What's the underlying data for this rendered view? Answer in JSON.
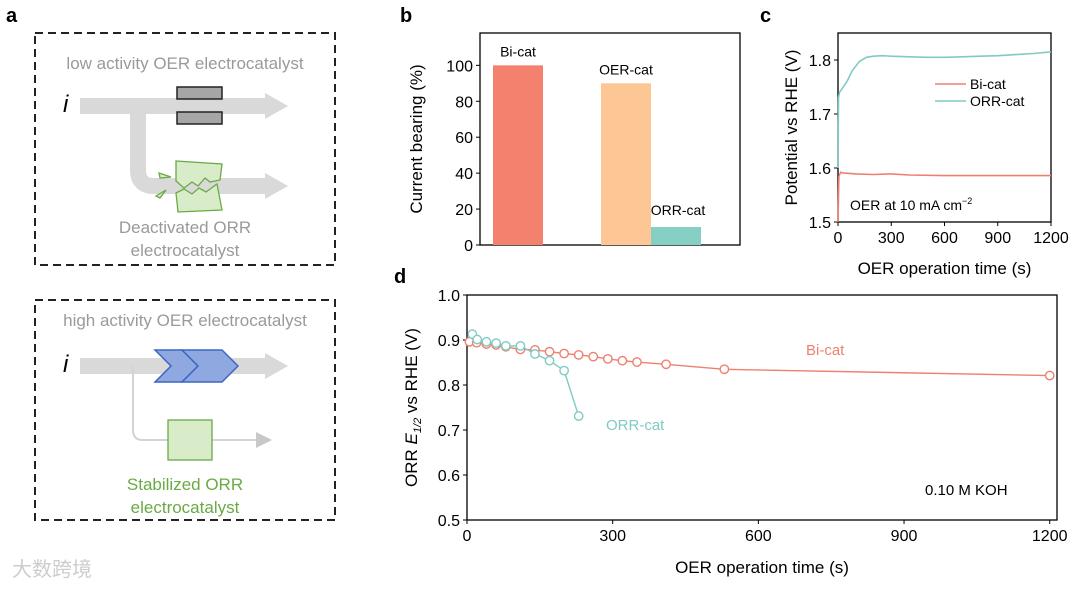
{
  "panels": {
    "a": "a",
    "b": "b",
    "c": "c",
    "d": "d"
  },
  "schematic": {
    "top_title": "low activity OER electrocatalyst",
    "top_current": "i",
    "top_caption_1": "Deactivated ORR",
    "top_caption_2": "electrocatalyst",
    "bottom_title": "high activity OER electrocatalyst",
    "bottom_current": "i",
    "bottom_caption_1": "Stabilized ORR",
    "bottom_caption_2": "electrocatalyst"
  },
  "watermark": "大数跨境",
  "colors": {
    "bi": "#f4806e",
    "oer": "#fcc795",
    "orr": "#85cfc5",
    "orr_line": "#7fcbc2",
    "bi_line": "#ef8070"
  },
  "chart_data": [
    {
      "id": "b",
      "type": "bar",
      "categories": [
        "Bi-cat",
        "OER-cat",
        "ORR-cat"
      ],
      "values": [
        100,
        90,
        10
      ],
      "bar_labels": [
        "Bi-cat",
        "OER-cat",
        "ORR-cat"
      ],
      "ylabel": "Current bearing (%)",
      "xlabel": "",
      "ylim": [
        0,
        118
      ],
      "yticks": [
        0,
        20,
        40,
        60,
        80,
        100
      ]
    },
    {
      "id": "c",
      "type": "line",
      "xlabel": "OER operation time (s)",
      "ylabel": "Potential vs RHE (V)",
      "xlim": [
        0,
        1200
      ],
      "ylim": [
        1.5,
        1.85
      ],
      "xticks": [
        0,
        300,
        600,
        900,
        1200
      ],
      "yticks": [
        1.5,
        1.6,
        1.7,
        1.8
      ],
      "ytick_labels": [
        "1.5",
        "1.6",
        "1.7",
        "1.8"
      ],
      "annotation": "OER at 10 mA cm",
      "annotation_sup": "−2",
      "legend_position": "upper-right",
      "series": [
        {
          "name": "Bi-cat",
          "x": [
            0,
            5,
            15,
            30,
            100,
            200,
            300,
            400,
            600,
            800,
            1000,
            1200
          ],
          "y": [
            1.5,
            1.585,
            1.592,
            1.591,
            1.589,
            1.588,
            1.589,
            1.587,
            1.586,
            1.586,
            1.586,
            1.586
          ]
        },
        {
          "name": "ORR-cat",
          "x": [
            0,
            3,
            8,
            20,
            50,
            80,
            120,
            160,
            200,
            250,
            300,
            400,
            500,
            600,
            700,
            800,
            900,
            1000,
            1100,
            1200
          ],
          "y": [
            1.6,
            1.73,
            1.74,
            1.745,
            1.76,
            1.78,
            1.797,
            1.805,
            1.807,
            1.808,
            1.807,
            1.806,
            1.805,
            1.805,
            1.806,
            1.807,
            1.808,
            1.81,
            1.812,
            1.815
          ]
        }
      ]
    },
    {
      "id": "d",
      "type": "line",
      "xlabel": "OER operation time (s)",
      "ylabel_prefix": "ORR ",
      "ylabel_var": "E",
      "ylabel_sub": "1/2",
      "ylabel_suffix": " vs RHE (V)",
      "xlim": [
        0,
        1215
      ],
      "ylim": [
        0.5,
        1.0
      ],
      "xticks": [
        0,
        300,
        600,
        900,
        1200
      ],
      "yticks": [
        0.5,
        0.6,
        0.7,
        0.8,
        0.9,
        1.0
      ],
      "ytick_labels": [
        "0.5",
        "0.6",
        "0.7",
        "0.8",
        "0.9",
        "1.0"
      ],
      "annotation": "0.10 M KOH",
      "series": [
        {
          "name": "Bi-cat",
          "x": [
            5,
            20,
            40,
            60,
            80,
            110,
            140,
            170,
            200,
            230,
            260,
            290,
            320,
            350,
            410,
            530,
            1200
          ],
          "y": [
            0.896,
            0.894,
            0.891,
            0.889,
            0.885,
            0.879,
            0.878,
            0.874,
            0.87,
            0.867,
            0.863,
            0.858,
            0.854,
            0.851,
            0.846,
            0.835,
            0.821
          ]
        },
        {
          "name": "ORR-cat",
          "x": [
            11,
            21,
            40,
            60,
            80,
            110,
            140,
            170,
            200,
            230
          ],
          "y": [
            0.913,
            0.901,
            0.896,
            0.893,
            0.887,
            0.887,
            0.869,
            0.854,
            0.832,
            0.731
          ]
        }
      ]
    }
  ]
}
